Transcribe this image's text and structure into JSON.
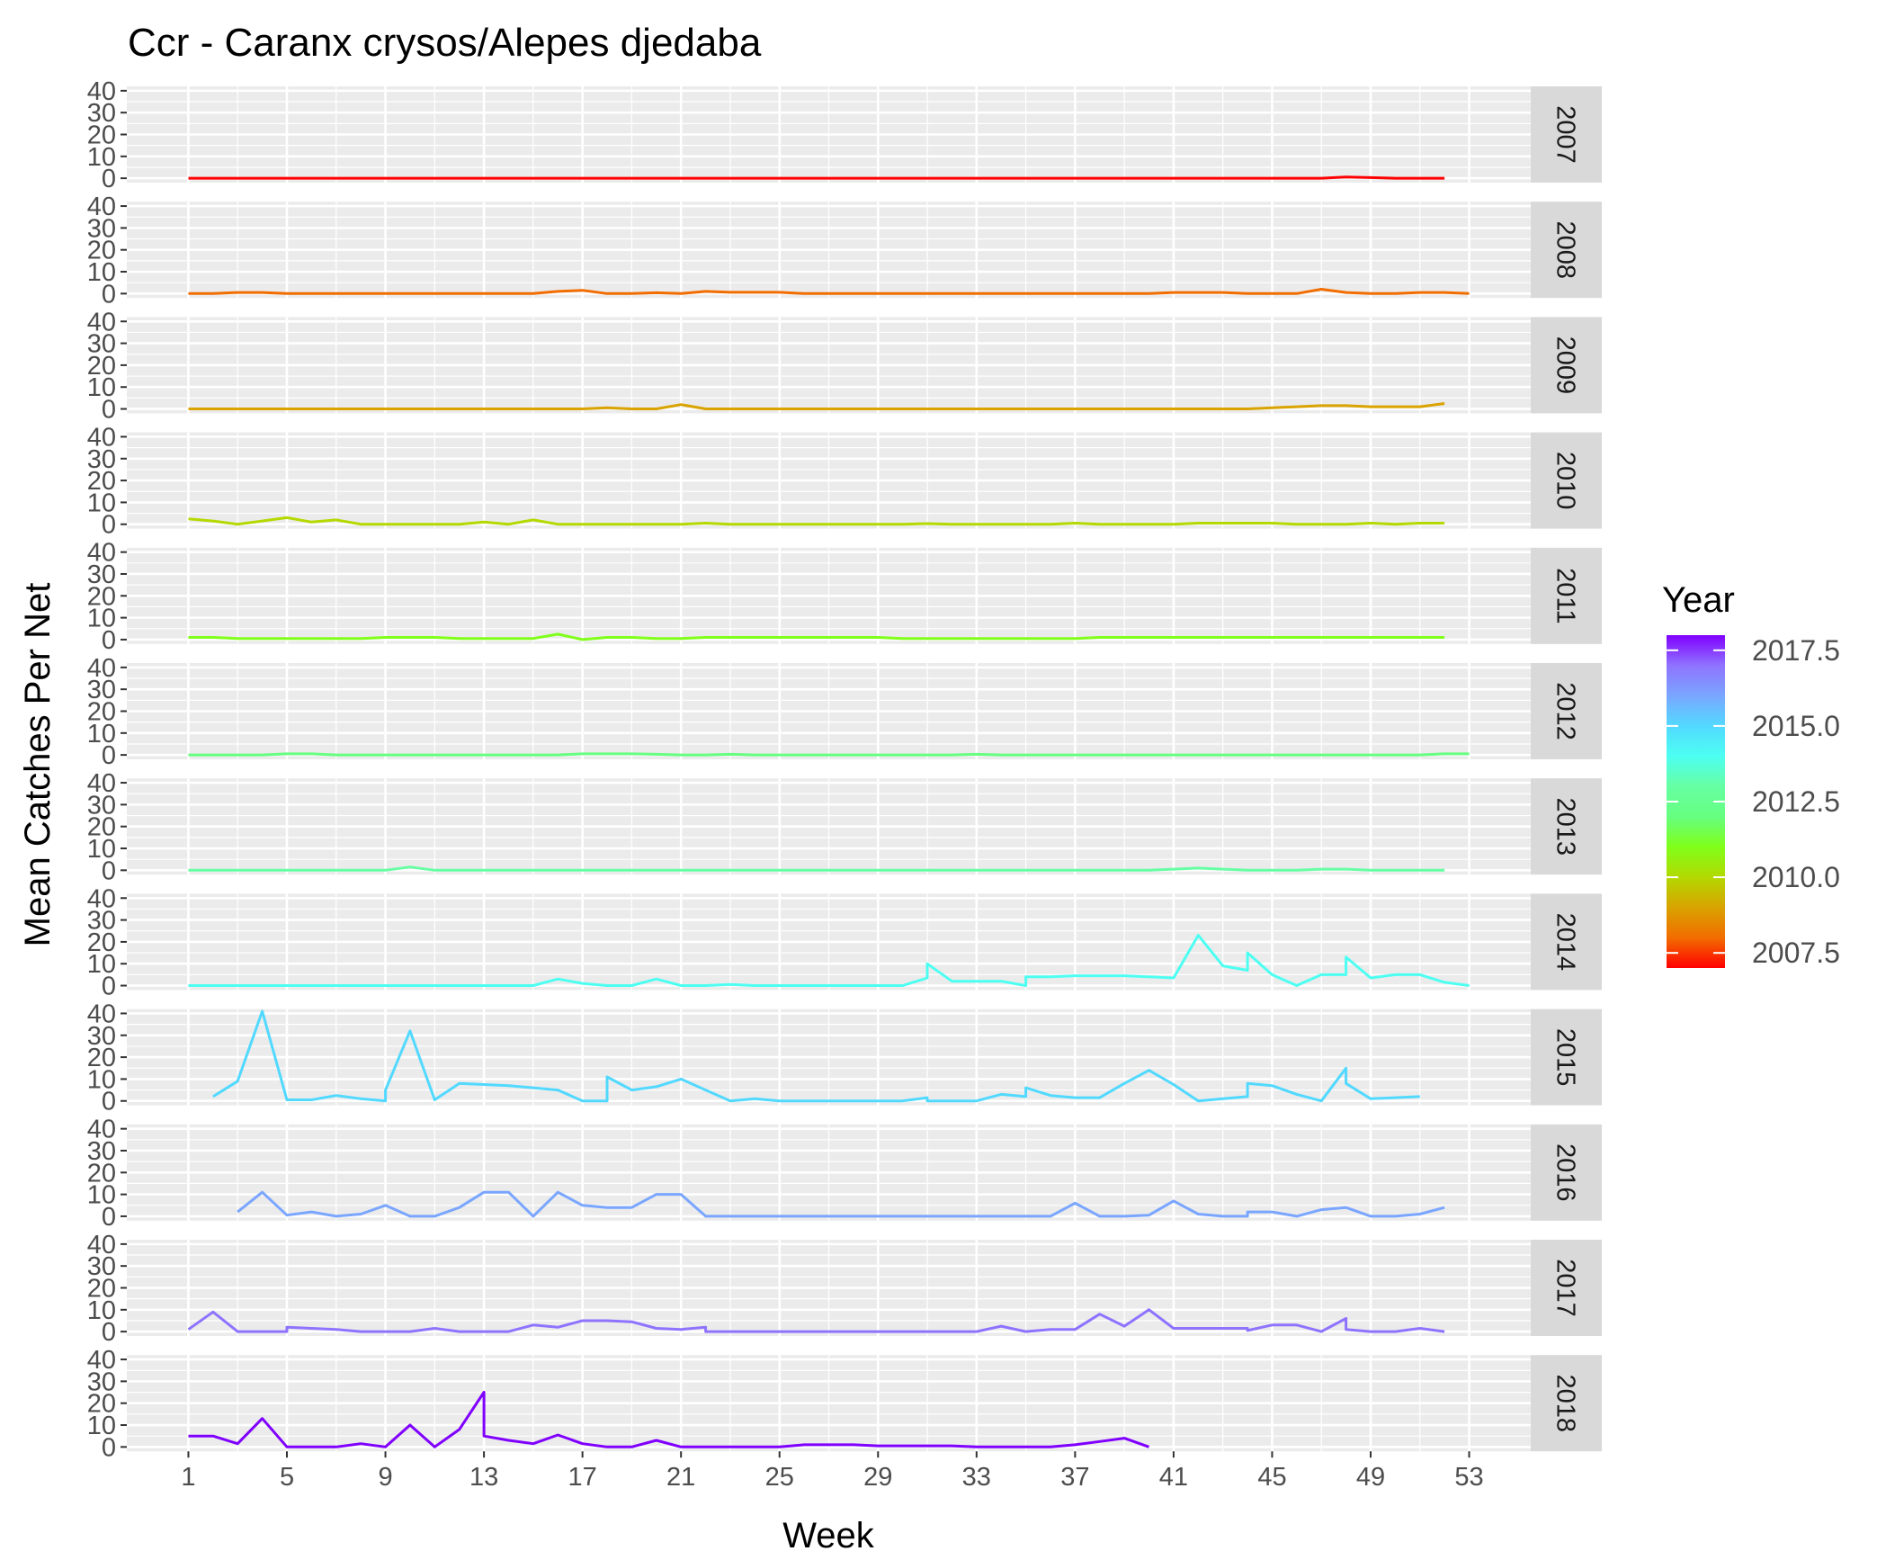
{
  "chart_data": {
    "type": "line",
    "title": "Ccr - Caranx crysos/Alepes djedaba",
    "xlabel": "Week",
    "ylabel": "Mean Catches Per Net",
    "x_ticks": [
      1,
      5,
      9,
      13,
      17,
      21,
      25,
      29,
      33,
      37,
      41,
      45,
      49,
      53
    ],
    "y_ticks": [
      0,
      10,
      20,
      30,
      40
    ],
    "xlim": [
      -1.5,
      55.5
    ],
    "ylim": [
      -2,
      42
    ],
    "grid": true,
    "facet": "rows by Year",
    "legend": {
      "title": "Year",
      "position": "right",
      "labels": [
        "2017.5",
        "2015.0",
        "2012.5",
        "2010.0",
        "2007.5"
      ],
      "label_values": [
        2017.5,
        2015.0,
        2012.5,
        2010.0,
        2007.5
      ],
      "range": [
        2007,
        2018
      ]
    },
    "series": [
      {
        "name": "2007",
        "color": "#ff0000",
        "x": [
          1,
          2,
          3,
          4,
          5,
          6,
          7,
          8,
          9,
          10,
          11,
          12,
          13,
          14,
          15,
          16,
          17,
          18,
          19,
          20,
          21,
          22,
          23,
          24,
          25,
          26,
          27,
          28,
          29,
          30,
          31,
          32,
          33,
          34,
          35,
          36,
          37,
          38,
          39,
          40,
          41,
          42,
          43,
          44,
          45,
          46,
          47,
          48,
          49,
          50,
          51,
          52
        ],
        "y": [
          0,
          0,
          0,
          0,
          0,
          0,
          0,
          0,
          0,
          0,
          0,
          0,
          0,
          0,
          0,
          0,
          0,
          0,
          0,
          0,
          0,
          0,
          0,
          0,
          0,
          0,
          0,
          0,
          0,
          0,
          0,
          0,
          0,
          0,
          0,
          0,
          0,
          0,
          0,
          0,
          0,
          0,
          0,
          0,
          0,
          0,
          0,
          0.6,
          0.3,
          0,
          0,
          0
        ]
      },
      {
        "name": "2008",
        "color": "#f26d00",
        "x": [
          1,
          2,
          3,
          4,
          5,
          6,
          7,
          8,
          9,
          10,
          11,
          12,
          13,
          14,
          15,
          16,
          17,
          18,
          19,
          20,
          21,
          22,
          23,
          24,
          25,
          26,
          27,
          28,
          29,
          30,
          31,
          32,
          33,
          34,
          35,
          36,
          37,
          38,
          39,
          40,
          41,
          42,
          43,
          44,
          45,
          46,
          47,
          48,
          49,
          50,
          51,
          52,
          53
        ],
        "y": [
          0,
          0,
          0.5,
          0.5,
          0,
          0,
          0,
          0,
          0,
          0,
          0,
          0,
          0,
          0,
          0,
          1,
          1.5,
          0,
          0,
          0.4,
          0,
          1,
          0.6,
          0.6,
          0.6,
          0,
          0,
          0,
          0,
          0,
          0,
          0,
          0,
          0,
          0,
          0,
          0,
          0,
          0,
          0,
          0.5,
          0.5,
          0.5,
          0,
          0,
          0,
          2,
          0.5,
          0,
          0,
          0.5,
          0.5,
          0
        ]
      },
      {
        "name": "2009",
        "color": "#d9a300",
        "x": [
          1,
          2,
          3,
          4,
          5,
          6,
          7,
          8,
          9,
          10,
          11,
          12,
          13,
          14,
          15,
          16,
          17,
          18,
          19,
          20,
          21,
          22,
          23,
          24,
          25,
          26,
          27,
          28,
          29,
          30,
          31,
          32,
          33,
          34,
          35,
          36,
          37,
          38,
          39,
          40,
          41,
          42,
          43,
          44,
          45,
          46,
          47,
          48,
          49,
          50,
          51,
          52
        ],
        "y": [
          0,
          0,
          0,
          0,
          0,
          0,
          0,
          0,
          0,
          0,
          0,
          0,
          0,
          0,
          0,
          0,
          0,
          0.5,
          0,
          0,
          2,
          0,
          0,
          0,
          0,
          0,
          0,
          0,
          0,
          0,
          0,
          0,
          0,
          0,
          0,
          0,
          0,
          0,
          0,
          0,
          0,
          0,
          0,
          0,
          0.5,
          1,
          1.5,
          1.5,
          1,
          1,
          1,
          2.5
        ]
      },
      {
        "name": "2010",
        "color": "#b3d900",
        "x": [
          1,
          2,
          3,
          4,
          5,
          6,
          7,
          8,
          9,
          10,
          11,
          12,
          13,
          14,
          15,
          16,
          17,
          18,
          19,
          20,
          21,
          22,
          23,
          24,
          25,
          26,
          27,
          28,
          29,
          30,
          31,
          32,
          33,
          34,
          35,
          36,
          37,
          38,
          39,
          40,
          41,
          42,
          43,
          44,
          45,
          46,
          47,
          48,
          49,
          50,
          51,
          52
        ],
        "y": [
          2.5,
          1.5,
          0,
          1.5,
          3,
          1,
          2,
          0,
          0,
          0,
          0,
          0,
          1,
          0,
          2,
          0,
          0,
          0,
          0,
          0,
          0,
          0.5,
          0,
          0,
          0,
          0,
          0,
          0,
          0,
          0,
          0.3,
          0,
          0,
          0,
          0,
          0,
          0.5,
          0,
          0,
          0,
          0,
          0.5,
          0.5,
          0.5,
          0.5,
          0,
          0,
          0,
          0.5,
          0,
          0.5,
          0.5
        ]
      },
      {
        "name": "2011",
        "color": "#80ff1a",
        "x": [
          1,
          2,
          3,
          4,
          5,
          6,
          7,
          8,
          9,
          10,
          11,
          12,
          13,
          14,
          15,
          16,
          17,
          18,
          19,
          20,
          21,
          22,
          23,
          24,
          25,
          26,
          27,
          28,
          29,
          30,
          31,
          32,
          33,
          34,
          35,
          36,
          37,
          38,
          39,
          40,
          41,
          42,
          43,
          44,
          45,
          46,
          47,
          48,
          49,
          50,
          51,
          52
        ],
        "y": [
          1,
          1,
          0.5,
          0.5,
          0.5,
          0.5,
          0.5,
          0.5,
          1,
          1,
          1,
          0.5,
          0.5,
          0.5,
          0.5,
          2.5,
          0,
          1,
          1,
          0.5,
          0.5,
          1,
          1,
          1,
          1,
          1,
          1,
          1,
          1,
          0.5,
          0.5,
          0.5,
          0.5,
          0.5,
          0.5,
          0.5,
          0.5,
          1,
          1,
          1,
          1,
          1,
          1,
          1,
          1,
          1,
          1,
          1,
          1,
          1,
          1,
          1
        ]
      },
      {
        "name": "2012",
        "color": "#66ff80",
        "x": [
          1,
          2,
          3,
          4,
          5,
          6,
          7,
          8,
          9,
          10,
          11,
          12,
          13,
          14,
          15,
          16,
          17,
          18,
          19,
          20,
          21,
          22,
          23,
          24,
          25,
          26,
          27,
          28,
          29,
          30,
          31,
          32,
          33,
          34,
          35,
          36,
          37,
          38,
          39,
          40,
          41,
          42,
          43,
          44,
          45,
          46,
          47,
          48,
          49,
          50,
          51,
          52,
          53
        ],
        "y": [
          0,
          0,
          0,
          0,
          0.5,
          0.5,
          0,
          0,
          0,
          0,
          0,
          0,
          0,
          0,
          0,
          0,
          0.5,
          0.5,
          0.5,
          0.3,
          0,
          0,
          0.3,
          0,
          0,
          0,
          0,
          0,
          0,
          0,
          0,
          0,
          0.3,
          0,
          0,
          0,
          0,
          0,
          0,
          0,
          0,
          0,
          0,
          0,
          0,
          0,
          0,
          0,
          0,
          0,
          0,
          0.5,
          0.5
        ]
      },
      {
        "name": "2013",
        "color": "#66ffa3",
        "x": [
          1,
          2,
          3,
          4,
          5,
          6,
          7,
          8,
          9,
          10,
          11,
          12,
          13,
          14,
          15,
          16,
          17,
          18,
          19,
          20,
          21,
          22,
          23,
          24,
          25,
          26,
          27,
          28,
          29,
          30,
          31,
          32,
          33,
          34,
          35,
          36,
          37,
          38,
          39,
          40,
          41,
          42,
          43,
          44,
          45,
          46,
          47,
          48,
          49,
          50,
          51,
          52
        ],
        "y": [
          0,
          0,
          0,
          0,
          0,
          0,
          0,
          0,
          0,
          1.5,
          0,
          0,
          0,
          0,
          0,
          0,
          0,
          0,
          0,
          0,
          0,
          0,
          0,
          0,
          0,
          0,
          0,
          0,
          0,
          0,
          0,
          0,
          0,
          0,
          0,
          0,
          0,
          0,
          0,
          0,
          0.5,
          1,
          0.5,
          0,
          0,
          0,
          0.5,
          0.5,
          0,
          0,
          0,
          0
        ]
      },
      {
        "name": "2014",
        "color": "#4dfff2",
        "x": [
          1,
          2,
          3,
          4,
          5,
          6,
          7,
          8,
          9,
          10,
          11,
          12,
          13,
          14,
          15,
          16,
          17,
          18,
          19,
          20,
          21,
          22,
          23,
          24,
          25,
          26,
          27,
          28,
          29,
          30,
          31,
          31,
          32,
          33,
          34,
          35,
          35,
          36,
          37,
          38,
          39,
          40,
          41,
          42,
          43,
          44,
          44,
          45,
          46,
          47,
          48,
          48,
          49,
          50,
          51,
          52,
          53
        ],
        "y": [
          0,
          0,
          0,
          0,
          0,
          0,
          0,
          0,
          0,
          0,
          0,
          0,
          0,
          0,
          0,
          3,
          1,
          0,
          0,
          3,
          0,
          0,
          0.5,
          0,
          0,
          0,
          0,
          0,
          0,
          0,
          3.5,
          10,
          2,
          2,
          2,
          0,
          4,
          4,
          4.5,
          4.5,
          4.5,
          4,
          3.5,
          23,
          9,
          7,
          15,
          5,
          0,
          5,
          5,
          13,
          3.5,
          5,
          5,
          1.5,
          0
        ]
      },
      {
        "name": "2015",
        "color": "#52d9ff",
        "x": [
          2,
          3,
          4,
          5,
          6,
          7,
          8,
          9,
          9,
          10,
          11,
          12,
          13,
          14,
          15,
          16,
          17,
          18,
          18,
          19,
          20,
          21,
          22,
          23,
          24,
          25,
          26,
          27,
          28,
          29,
          30,
          31,
          31,
          32,
          33,
          34,
          35,
          35,
          36,
          37,
          38,
          39,
          40,
          41,
          42,
          43,
          44,
          44,
          45,
          46,
          47,
          48,
          48,
          49,
          50,
          51
        ],
        "y": [
          2,
          9,
          41,
          0.5,
          0.5,
          2.5,
          1,
          0,
          5,
          32,
          0.5,
          8,
          7.5,
          7,
          6,
          5,
          0,
          0,
          11,
          5,
          6.5,
          10,
          5,
          0,
          1,
          0,
          0,
          0,
          0,
          0,
          0,
          1.5,
          0,
          0,
          0,
          3,
          2,
          6,
          2.5,
          1.5,
          1.5,
          8,
          14,
          7.5,
          0,
          1,
          2,
          8,
          7,
          3,
          0,
          15,
          8,
          1,
          1.5,
          2
        ]
      },
      {
        "name": "2016",
        "color": "#7aa6ff",
        "x": [
          3,
          4,
          5,
          6,
          7,
          8,
          9,
          10,
          11,
          12,
          13,
          14,
          15,
          16,
          17,
          18,
          19,
          20,
          21,
          22,
          23,
          24,
          25,
          26,
          27,
          28,
          29,
          30,
          31,
          32,
          33,
          34,
          35,
          36,
          37,
          38,
          39,
          40,
          41,
          42,
          43,
          44,
          44,
          45,
          46,
          47,
          48,
          49,
          50,
          51,
          52
        ],
        "y": [
          2,
          11,
          0.5,
          2,
          0,
          1,
          5,
          0,
          0,
          4,
          11,
          11,
          0,
          11,
          5,
          4,
          4,
          10,
          10,
          0,
          0,
          0,
          0,
          0,
          0,
          0,
          0,
          0,
          0,
          0,
          0,
          0,
          0,
          0,
          6,
          0,
          0,
          0.5,
          7,
          1,
          0,
          0,
          2,
          2,
          0,
          3,
          4,
          0,
          0,
          1,
          4
        ]
      },
      {
        "name": "2017",
        "color": "#8f73ff",
        "x": [
          1,
          2,
          3,
          4,
          5,
          5,
          6,
          7,
          8,
          9,
          10,
          11,
          12,
          13,
          14,
          15,
          16,
          17,
          18,
          19,
          20,
          21,
          22,
          22,
          23,
          24,
          25,
          26,
          27,
          28,
          29,
          30,
          31,
          32,
          33,
          34,
          35,
          35,
          36,
          37,
          38,
          39,
          40,
          41,
          42,
          43,
          44,
          44,
          45,
          46,
          47,
          48,
          48,
          49,
          50,
          51,
          52
        ],
        "y": [
          1,
          9,
          0,
          0,
          0,
          2,
          1.5,
          1,
          0,
          0,
          0,
          1.5,
          0,
          0,
          0,
          3,
          2,
          5,
          5,
          4.5,
          1.5,
          1,
          2,
          0,
          0,
          0,
          0,
          0,
          0,
          0,
          0,
          0,
          0,
          0,
          0,
          2.5,
          0,
          0,
          1,
          1,
          8,
          2.5,
          10,
          1.5,
          1.5,
          1.5,
          1.5,
          0.5,
          3,
          3,
          0,
          6,
          1,
          0,
          0,
          1.5,
          0
        ]
      },
      {
        "name": "2018",
        "color": "#8000ff",
        "x": [
          1,
          2,
          3,
          4,
          5,
          6,
          7,
          8,
          9,
          10,
          11,
          12,
          13,
          13,
          14,
          15,
          16,
          17,
          18,
          19,
          20,
          21,
          22,
          23,
          24,
          25,
          26,
          27,
          28,
          29,
          30,
          31,
          32,
          33,
          34,
          35,
          36,
          37,
          38,
          39,
          40
        ],
        "y": [
          5,
          5,
          1.5,
          13,
          0,
          0,
          0,
          1.5,
          0,
          10,
          0,
          8,
          25,
          5,
          3,
          1.5,
          5.5,
          1.5,
          0,
          0,
          3,
          0,
          0,
          0,
          0,
          0,
          1,
          1,
          1,
          0.5,
          0.5,
          0.5,
          0.5,
          0,
          0,
          0,
          0,
          1,
          2.5,
          4,
          0
        ]
      }
    ]
  }
}
